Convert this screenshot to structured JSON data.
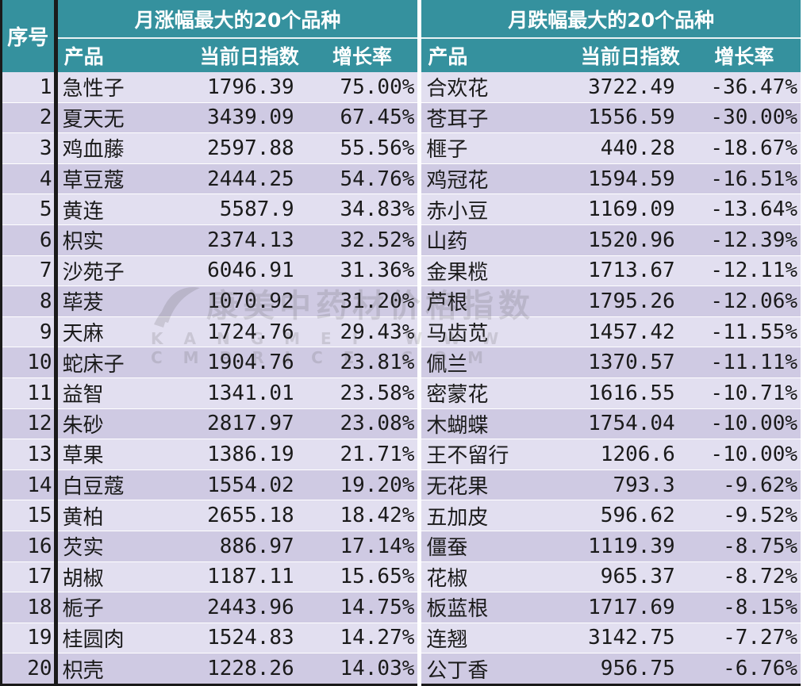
{
  "header": {
    "seq_label": "序号",
    "rise_title": "月涨幅最大的20个品种",
    "fall_title": "月跌幅最大的20个品种",
    "col_product": "产品",
    "col_index": "当前日指数",
    "col_rate": "增长率"
  },
  "watermark": {
    "cn": "康美中药材价格指数",
    "en": "KANGMEI WWW CMPRICE COM"
  },
  "rows": [
    {
      "seq": "1",
      "rise_name": "急性子",
      "rise_index": "1796.39",
      "rise_rate": "75.00%",
      "fall_name": "合欢花",
      "fall_index": "3722.49",
      "fall_rate": "-36.47%"
    },
    {
      "seq": "2",
      "rise_name": "夏天无",
      "rise_index": "3439.09",
      "rise_rate": "67.45%",
      "fall_name": "苍耳子",
      "fall_index": "1556.59",
      "fall_rate": "-30.00%"
    },
    {
      "seq": "3",
      "rise_name": "鸡血藤",
      "rise_index": "2597.88",
      "rise_rate": "55.56%",
      "fall_name": "榧子",
      "fall_index": "440.28",
      "fall_rate": "-18.67%"
    },
    {
      "seq": "4",
      "rise_name": "草豆蔻",
      "rise_index": "2444.25",
      "rise_rate": "54.76%",
      "fall_name": "鸡冠花",
      "fall_index": "1594.59",
      "fall_rate": "-16.51%"
    },
    {
      "seq": "5",
      "rise_name": "黄连",
      "rise_index": "5587.9",
      "rise_rate": "34.83%",
      "fall_name": "赤小豆",
      "fall_index": "1169.09",
      "fall_rate": "-13.64%"
    },
    {
      "seq": "6",
      "rise_name": "枳实",
      "rise_index": "2374.13",
      "rise_rate": "32.52%",
      "fall_name": "山药",
      "fall_index": "1520.96",
      "fall_rate": "-12.39%"
    },
    {
      "seq": "7",
      "rise_name": "沙苑子",
      "rise_index": "6046.91",
      "rise_rate": "31.36%",
      "fall_name": "金果榄",
      "fall_index": "1713.67",
      "fall_rate": "-12.11%"
    },
    {
      "seq": "8",
      "rise_name": "荜茇",
      "rise_index": "1070.92",
      "rise_rate": "31.20%",
      "fall_name": "芦根",
      "fall_index": "1795.26",
      "fall_rate": "-12.06%"
    },
    {
      "seq": "9",
      "rise_name": "天麻",
      "rise_index": "1724.76",
      "rise_rate": "29.43%",
      "fall_name": "马齿苋",
      "fall_index": "1457.42",
      "fall_rate": "-11.55%"
    },
    {
      "seq": "10",
      "rise_name": "蛇床子",
      "rise_index": "1904.76",
      "rise_rate": "23.81%",
      "fall_name": "佩兰",
      "fall_index": "1370.57",
      "fall_rate": "-11.11%"
    },
    {
      "seq": "11",
      "rise_name": "益智",
      "rise_index": "1341.01",
      "rise_rate": "23.58%",
      "fall_name": "密蒙花",
      "fall_index": "1616.55",
      "fall_rate": "-10.71%"
    },
    {
      "seq": "12",
      "rise_name": "朱砂",
      "rise_index": "2817.97",
      "rise_rate": "23.08%",
      "fall_name": "木蝴蝶",
      "fall_index": "1754.04",
      "fall_rate": "-10.00%"
    },
    {
      "seq": "13",
      "rise_name": "草果",
      "rise_index": "1386.19",
      "rise_rate": "21.71%",
      "fall_name": "王不留行",
      "fall_index": "1206.6",
      "fall_rate": "-10.00%"
    },
    {
      "seq": "14",
      "rise_name": "白豆蔻",
      "rise_index": "1554.02",
      "rise_rate": "19.20%",
      "fall_name": "无花果",
      "fall_index": "793.3",
      "fall_rate": "-9.62%"
    },
    {
      "seq": "15",
      "rise_name": "黄柏",
      "rise_index": "2655.18",
      "rise_rate": "18.42%",
      "fall_name": "五加皮",
      "fall_index": "596.62",
      "fall_rate": "-9.52%"
    },
    {
      "seq": "16",
      "rise_name": "芡实",
      "rise_index": "886.97",
      "rise_rate": "17.14%",
      "fall_name": "僵蚕",
      "fall_index": "1119.39",
      "fall_rate": "-8.75%"
    },
    {
      "seq": "17",
      "rise_name": "胡椒",
      "rise_index": "1187.11",
      "rise_rate": "15.65%",
      "fall_name": "花椒",
      "fall_index": "965.37",
      "fall_rate": "-8.72%"
    },
    {
      "seq": "18",
      "rise_name": "栀子",
      "rise_index": "2443.96",
      "rise_rate": "14.75%",
      "fall_name": "板蓝根",
      "fall_index": "1717.69",
      "fall_rate": "-8.15%"
    },
    {
      "seq": "19",
      "rise_name": "桂圆肉",
      "rise_index": "1524.83",
      "rise_rate": "14.27%",
      "fall_name": "连翘",
      "fall_index": "3142.75",
      "fall_rate": "-7.27%"
    },
    {
      "seq": "20",
      "rise_name": "枳壳",
      "rise_index": "1228.26",
      "rise_rate": "14.03%",
      "fall_name": "公丁香",
      "fall_index": "956.75",
      "fall_rate": "-6.76%"
    }
  ]
}
